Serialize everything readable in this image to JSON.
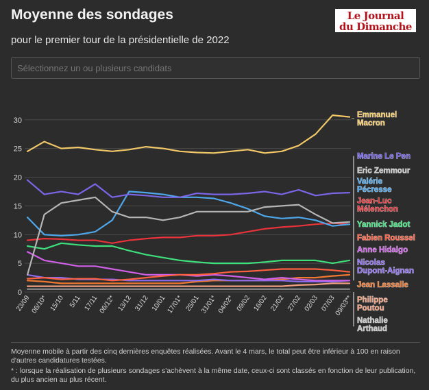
{
  "header": {
    "title": "Moyenne des sondages",
    "subtitle": "pour le premier tour de la présidentielle de 2022",
    "logo_line1": "Le Journal",
    "logo_line2": "du Dimanche"
  },
  "filter": {
    "placeholder": "Sélectionnez un ou plusieurs candidats"
  },
  "footer": {
    "note1": "Moyenne mobile à partir des cinq dernières enquêtes réalisées. Avant le 4 mars, le total peut être inférieur à 100 en raison d'autres candidatures testées.",
    "note2": "* : lorsque la réalisation de plusieurs sondages s'achèvent à la même date, ceux-ci sont classés en fonction de leur publication, du plus ancien au plus récent."
  },
  "chart_data": {
    "type": "line",
    "title": "Moyenne des sondages",
    "subtitle": "pour le premier tour de la présidentielle de 2022",
    "xlabel": "",
    "ylabel": "",
    "ylim": [
      0,
      32
    ],
    "yticks": [
      0,
      5,
      10,
      15,
      20,
      25,
      30
    ],
    "grid": true,
    "legend": "right (inline labels)",
    "x": [
      "23/09",
      "06/10*",
      "15/10",
      "5/11",
      "17/11",
      "06/12*",
      "13/12",
      "31/12",
      "10/01",
      "17/01*",
      "25/01",
      "31/01*",
      "04/02*",
      "09/02",
      "16/02",
      "21/02",
      "27/02",
      "02/03",
      "07/03",
      "09/03**"
    ],
    "series": [
      {
        "name": "Emmanuel Macron",
        "color": "#f2c868",
        "values": [
          24.5,
          26.2,
          25.0,
          25.2,
          24.8,
          24.5,
          24.8,
          25.3,
          25.0,
          24.5,
          24.3,
          24.2,
          24.5,
          24.8,
          24.2,
          24.5,
          25.5,
          27.5,
          30.8,
          30.5
        ]
      },
      {
        "name": "Marine Le Pen",
        "color": "#7b66e8",
        "values": [
          19.5,
          17.0,
          17.5,
          17.0,
          18.8,
          16.5,
          17.0,
          16.8,
          16.5,
          16.5,
          17.2,
          17.0,
          17.0,
          17.2,
          17.5,
          17.0,
          17.8,
          16.8,
          17.2,
          17.3
        ]
      },
      {
        "name": "Eric Zemmour",
        "color": "#b5b5b5",
        "values": [
          3.0,
          13.5,
          15.5,
          16.0,
          16.5,
          14.0,
          13.0,
          13.0,
          12.5,
          13.0,
          14.0,
          14.0,
          14.0,
          14.0,
          14.8,
          15.0,
          15.2,
          13.5,
          12.0,
          12.2
        ]
      },
      {
        "name": "Valérie Pécresse",
        "color": "#4ea7ea",
        "values": [
          13.0,
          10.0,
          9.8,
          10.0,
          10.5,
          12.5,
          17.5,
          17.3,
          17.0,
          16.5,
          16.5,
          16.3,
          15.5,
          14.5,
          13.2,
          12.8,
          13.0,
          12.5,
          11.5,
          11.8
        ]
      },
      {
        "name": "Jean-Luc Mélenchon",
        "color": "#e8333a",
        "values": [
          9.0,
          9.3,
          9.2,
          9.0,
          9.0,
          8.5,
          9.0,
          9.3,
          9.5,
          9.5,
          9.8,
          9.8,
          10.0,
          10.5,
          11.0,
          11.3,
          11.5,
          11.8,
          12.0,
          11.8
        ]
      },
      {
        "name": "Yannick Jadot",
        "color": "#3ee07b",
        "values": [
          8.0,
          7.5,
          8.5,
          8.2,
          8.0,
          8.0,
          7.2,
          6.5,
          6.0,
          5.5,
          5.2,
          5.0,
          5.0,
          5.0,
          5.2,
          5.5,
          5.5,
          5.5,
          5.0,
          5.5
        ]
      },
      {
        "name": "Fabien Roussel",
        "color": "#ff6040",
        "values": [
          2.3,
          2.5,
          2.2,
          2.3,
          2.3,
          2.0,
          2.2,
          2.5,
          2.8,
          3.0,
          3.0,
          3.2,
          3.5,
          3.6,
          3.8,
          4.0,
          4.0,
          4.0,
          3.8,
          3.5
        ]
      },
      {
        "name": "Anne Hidalgo",
        "color": "#d060e8",
        "values": [
          7.0,
          5.5,
          5.0,
          4.5,
          4.5,
          4.0,
          3.5,
          3.0,
          3.0,
          3.0,
          2.8,
          3.0,
          2.8,
          2.5,
          2.2,
          2.5,
          2.2,
          2.0,
          2.0,
          2.0
        ]
      },
      {
        "name": "Nicolas Dupont-Aignan",
        "color": "#8b6cf0",
        "values": [
          3.0,
          2.5,
          2.5,
          2.2,
          2.2,
          2.2,
          2.0,
          2.0,
          2.0,
          2.0,
          2.0,
          2.2,
          2.0,
          2.0,
          2.0,
          2.0,
          1.8,
          1.8,
          1.8,
          2.0
        ]
      },
      {
        "name": "Jean Lassalle",
        "color": "#f07830",
        "values": [
          2.0,
          1.8,
          1.5,
          1.5,
          1.5,
          1.5,
          1.5,
          1.5,
          1.5,
          1.5,
          1.8,
          2.0,
          2.0,
          2.0,
          2.0,
          2.2,
          2.5,
          2.5,
          2.8,
          3.0
        ]
      },
      {
        "name": "Philippe Poutou",
        "color": "#f0a080",
        "values": [
          1.0,
          1.0,
          1.0,
          1.0,
          1.0,
          1.0,
          1.0,
          1.0,
          1.0,
          1.0,
          1.0,
          1.0,
          1.0,
          1.0,
          1.0,
          1.0,
          1.2,
          1.3,
          1.5,
          1.5
        ]
      },
      {
        "name": "Nathalie Arthaud",
        "color": "#8a8a8a",
        "values": [
          0.5,
          0.5,
          0.5,
          0.5,
          0.5,
          0.5,
          0.5,
          0.5,
          0.5,
          0.5,
          0.5,
          0.5,
          0.5,
          0.5,
          0.5,
          0.5,
          0.5,
          0.5,
          0.5,
          0.5
        ]
      }
    ],
    "labels": [
      {
        "series": "Emmanuel Macron",
        "lines": [
          "Emmanuel",
          "Macron"
        ],
        "color": "#f2c868",
        "y": 30.2
      },
      {
        "series": "Marine Le Pen",
        "lines": [
          "Marine Le Pen"
        ],
        "color": "#6f5ce8",
        "y": 23.7
      },
      {
        "series": "Eric Zemmour",
        "lines": [
          "Eric Zemmour"
        ],
        "color": "#c8c8c8",
        "y": 21.2
      },
      {
        "series": "Valérie Pécresse",
        "lines": [
          "Valérie",
          "Pécresse"
        ],
        "color": "#4ea7ea",
        "y": 18.6
      },
      {
        "series": "Jean-Luc Mélenchon",
        "lines": [
          "Jean-Luc",
          "Mélenchon"
        ],
        "color": "#e8333a",
        "y": 15.2
      },
      {
        "series": "Yannick Jadot",
        "lines": [
          "Yannick Jadot"
        ],
        "color": "#3ee07b",
        "y": 11.8
      },
      {
        "series": "Fabien Roussel",
        "lines": [
          "Fabien Roussel"
        ],
        "color": "#ff6040",
        "y": 9.5
      },
      {
        "series": "Anne Hidalgo",
        "lines": [
          "Anne Hidalgo"
        ],
        "color": "#d060e8",
        "y": 7.4
      },
      {
        "series": "Nicolas Dupont-Aignan",
        "lines": [
          "Nicolas",
          "Dupont-Aignan"
        ],
        "color": "#8b6cf0",
        "y": 4.5
      },
      {
        "series": "Jean Lassalle",
        "lines": [
          "Jean Lassalle"
        ],
        "color": "#f07830",
        "y": 1.3
      },
      {
        "series": "Philippe Poutou",
        "lines": [
          "Philippe",
          "Poutou"
        ],
        "color": "#f0a080",
        "y": -2.0
      },
      {
        "series": "Nathalie Arthaud",
        "lines": [
          "Nathalie",
          "Arthaud"
        ],
        "color": "#c8c8c8",
        "y": -5.6
      }
    ],
    "brackets": [
      {
        "from": 23.7,
        "to": 2.0,
        "dash": false
      },
      {
        "from": 0.0,
        "to": -6.0,
        "dash": false
      }
    ]
  }
}
